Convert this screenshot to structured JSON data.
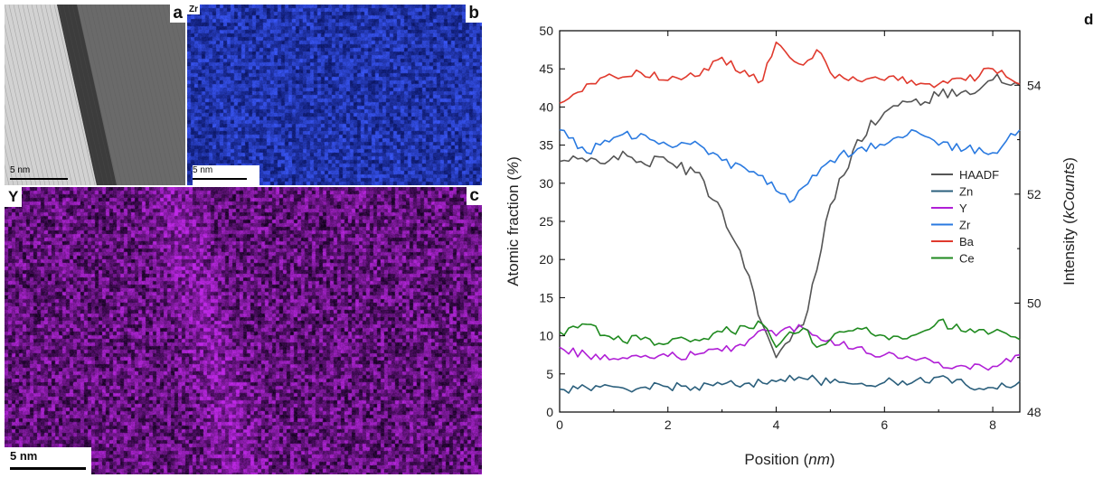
{
  "panels": {
    "a": {
      "label": "a",
      "scalebar": "5 nm"
    },
    "b": {
      "label": "b",
      "element": "Zr",
      "scalebar": "5 nm"
    },
    "c": {
      "label": "c",
      "element": "Y",
      "scalebar": "5 nm"
    },
    "d": {
      "label": "d"
    }
  },
  "colors": {
    "HAADF": "#555555",
    "Zn": "#2b5f7c",
    "Y": "#b01fd6",
    "Zr": "#2a7ae0",
    "Ba": "#e03a2e",
    "Ce": "#1f8a1f"
  },
  "chart_data": {
    "type": "line",
    "xlabel": "Position (nm)",
    "ylabel_left": "Atomic fraction (%)",
    "ylabel_right": "Intensity (kCounts)",
    "xlim": [
      0,
      8.5
    ],
    "ylim_left": [
      0,
      50
    ],
    "ylim_right": [
      48,
      55
    ],
    "x_ticks": [
      "0",
      "2",
      "4",
      "6",
      "8"
    ],
    "y_left_ticks": [
      "0",
      "5",
      "10",
      "15",
      "20",
      "25",
      "30",
      "35",
      "40",
      "45",
      "50"
    ],
    "y_right_ticks": [
      "48",
      "50",
      "52",
      "54"
    ],
    "legend": [
      "HAADF",
      "Zn",
      "Y",
      "Zr",
      "Ba",
      "Ce"
    ],
    "legend_position": "right",
    "x": [
      0,
      0.5,
      1,
      1.5,
      2,
      2.5,
      3,
      3.5,
      3.75,
      4,
      4.25,
      4.5,
      4.75,
      5,
      5.5,
      6,
      6.5,
      7,
      7.5,
      8,
      8.5
    ],
    "series": [
      {
        "name": "HAADF",
        "axis": "right",
        "values": [
          52.6,
          52.6,
          52.7,
          52.6,
          52.6,
          52.4,
          51.7,
          50.5,
          49.6,
          49.0,
          49.3,
          49.6,
          50.6,
          51.8,
          53.0,
          53.5,
          53.7,
          53.8,
          53.9,
          54.1,
          54.0
        ]
      },
      {
        "name": "Zn",
        "values": [
          3.0,
          3.2,
          3.3,
          3.2,
          3.3,
          3.3,
          3.6,
          3.8,
          3.8,
          4.0,
          4.8,
          4.4,
          4.2,
          3.8,
          3.7,
          3.9,
          3.8,
          4.6,
          3.6,
          3.2,
          4.0
        ]
      },
      {
        "name": "Y",
        "values": [
          8.5,
          7.5,
          7.0,
          7.2,
          7.3,
          7.5,
          8.0,
          9.5,
          10.8,
          10.0,
          11.2,
          11.0,
          10.0,
          9.5,
          8.5,
          7.5,
          7.0,
          6.5,
          6.0,
          6.0,
          7.5
        ]
      },
      {
        "name": "Zr",
        "values": [
          37.0,
          34.0,
          36.0,
          36.5,
          35.0,
          35.5,
          33.0,
          31.5,
          31.0,
          29.0,
          27.5,
          29.5,
          31.0,
          33.0,
          34.5,
          35.0,
          37.0,
          35.0,
          34.5,
          34.0,
          37.0
        ]
      },
      {
        "name": "Ba",
        "values": [
          40.5,
          43.0,
          44.0,
          44.5,
          43.5,
          44.0,
          46.5,
          44.0,
          43.5,
          48.5,
          46.5,
          45.5,
          47.5,
          44.5,
          43.5,
          43.5,
          43.5,
          43.0,
          43.5,
          45.0,
          43.0
        ]
      },
      {
        "name": "Ce",
        "values": [
          10.5,
          11.5,
          9.5,
          9.5,
          9.0,
          9.5,
          10.5,
          11.0,
          11.5,
          8.5,
          10.5,
          11.0,
          8.5,
          9.5,
          11.0,
          10.0,
          10.0,
          12.0,
          10.5,
          10.5,
          9.5
        ]
      }
    ]
  }
}
